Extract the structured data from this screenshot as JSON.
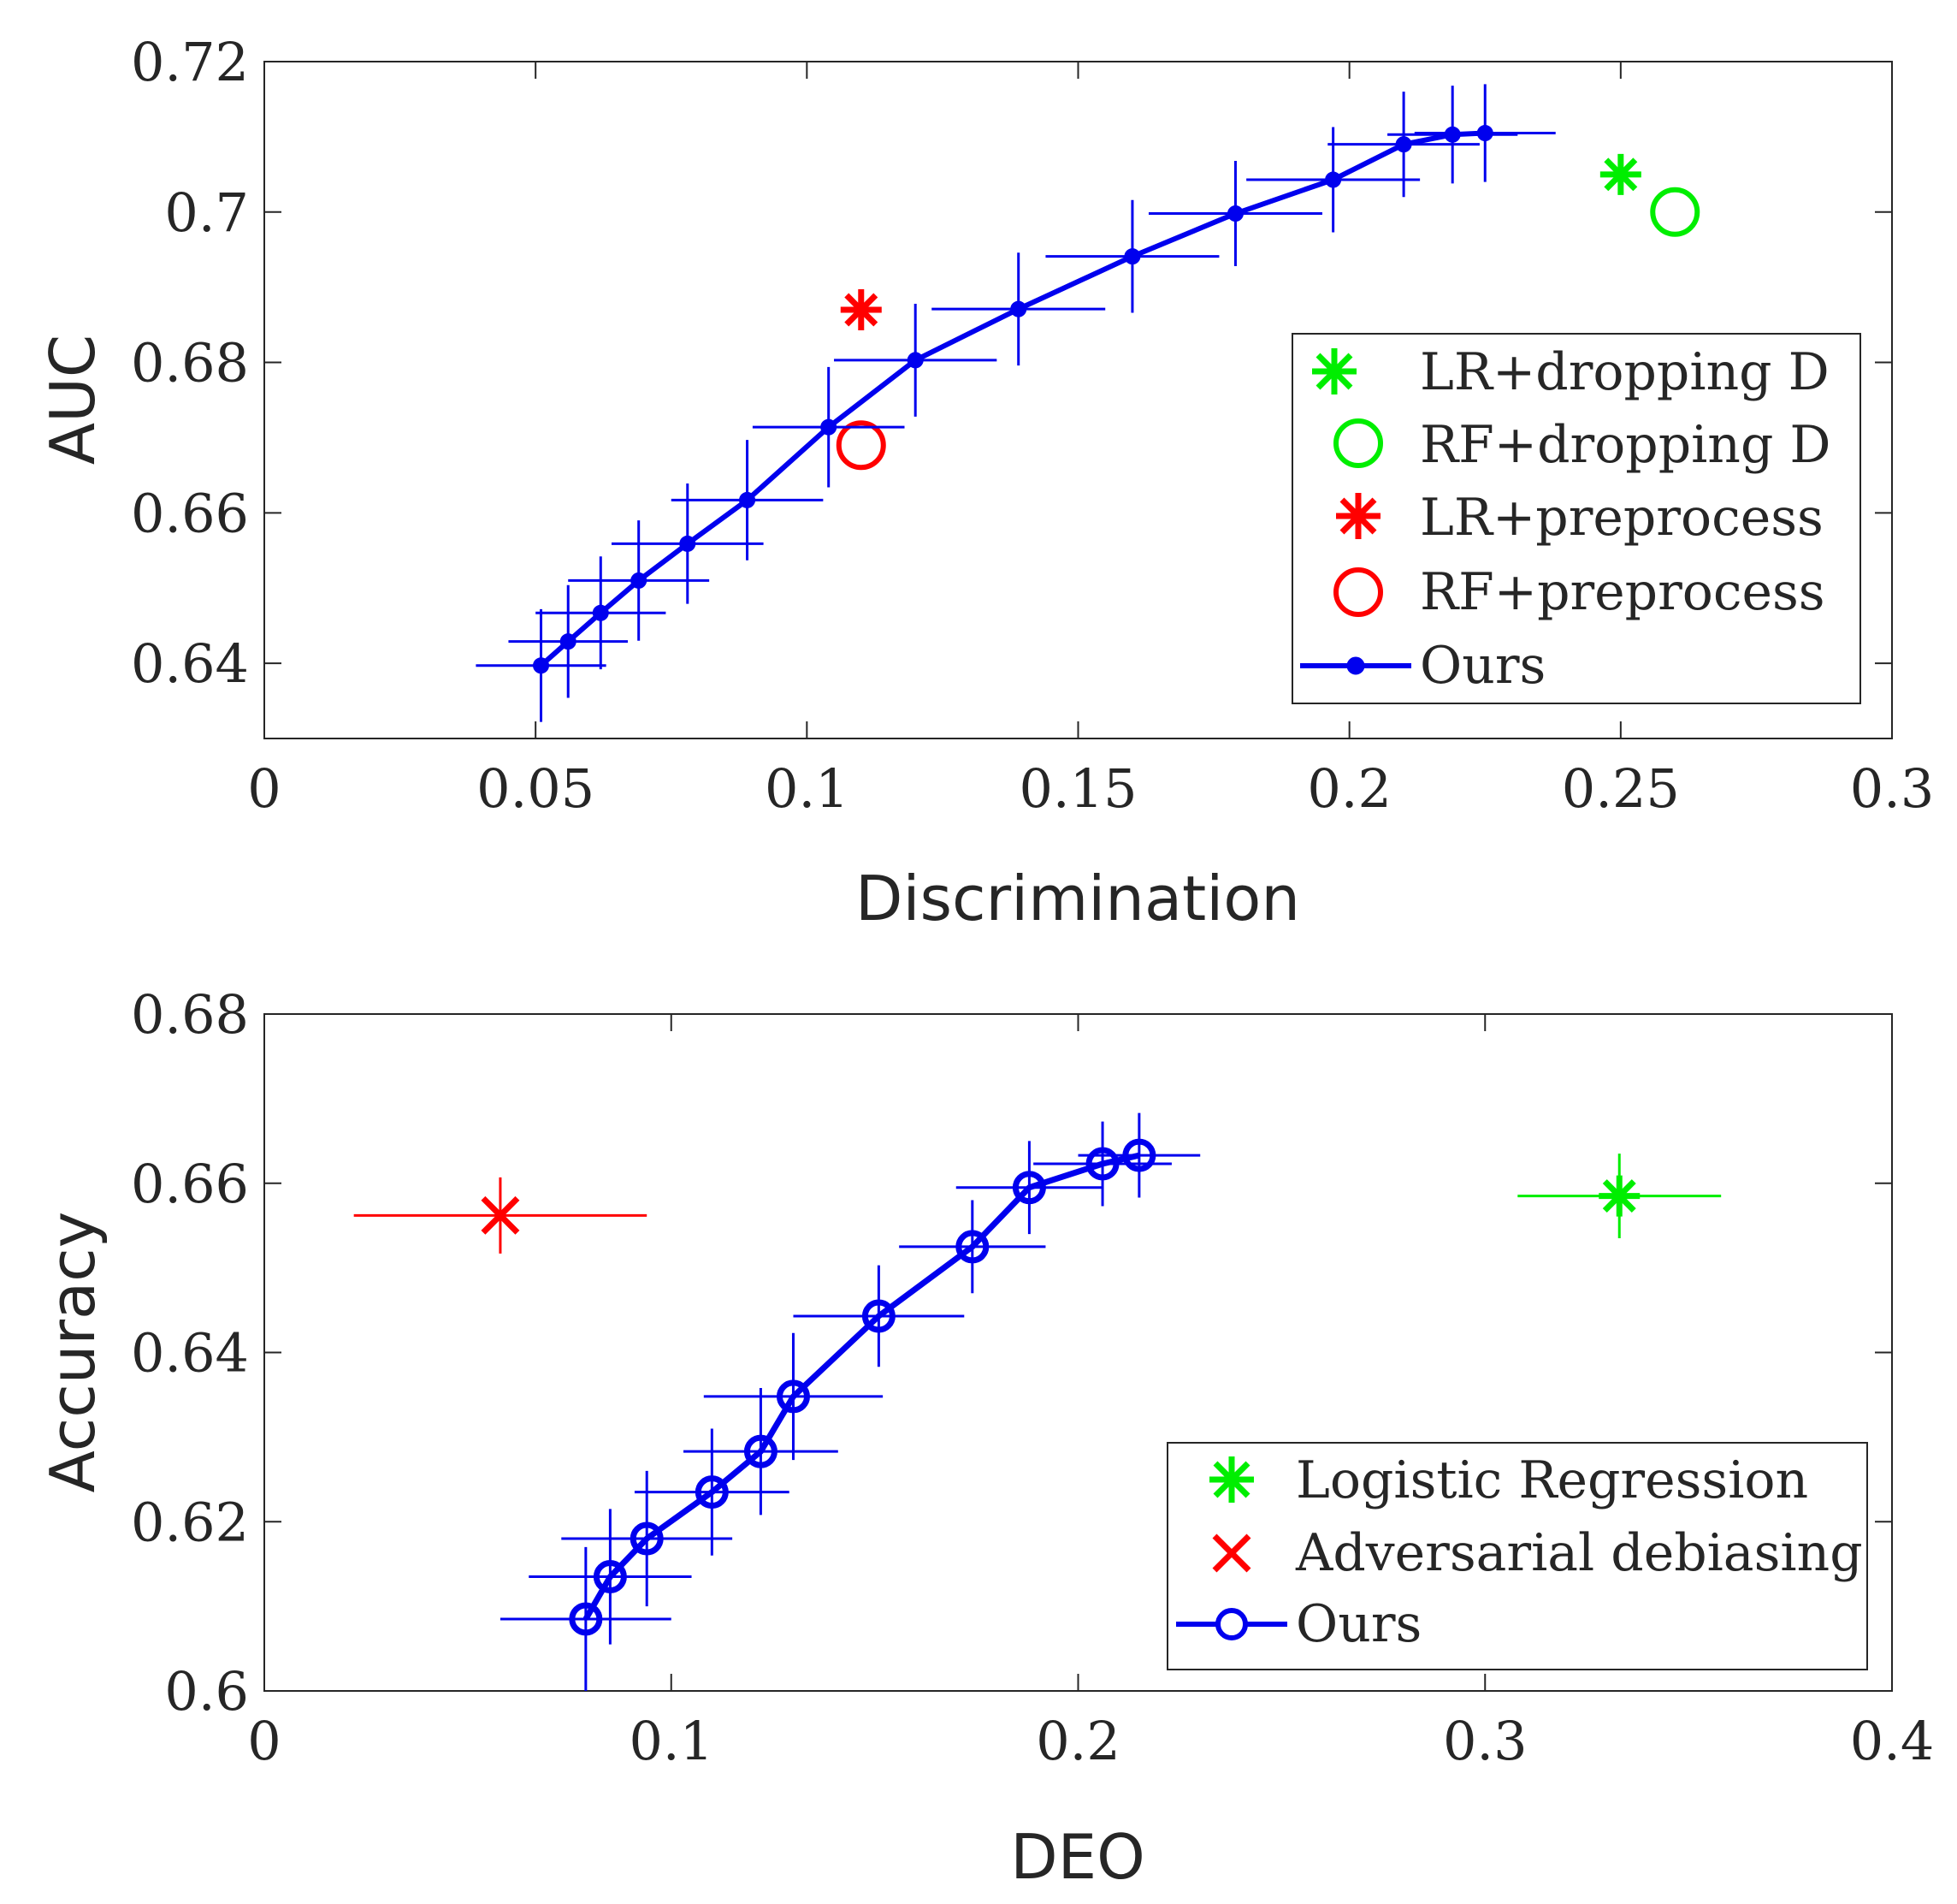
{
  "chart_data": [
    {
      "type": "scatter",
      "title": "",
      "xlabel": "Discrimination",
      "ylabel": "AUC",
      "xlim": [
        0,
        0.3
      ],
      "ylim": [
        0.63,
        0.72
      ],
      "xticks": [
        "0",
        "0.05",
        "0.1",
        "0.15",
        "0.2",
        "0.25",
        "0.3"
      ],
      "yticks": [
        "0.64",
        "0.66",
        "0.68",
        "0.7",
        "0.72"
      ],
      "legend_position": "right",
      "series": [
        {
          "name": "LR+dropping D",
          "marker": "asterisk",
          "color": "#00ee00",
          "x": [
            0.25
          ],
          "y": [
            0.705
          ]
        },
        {
          "name": "RF+dropping D",
          "marker": "circle",
          "color": "#00ee00",
          "x": [
            0.26
          ],
          "y": [
            0.7
          ]
        },
        {
          "name": "LR+preprocess",
          "marker": "asterisk",
          "color": "#ff0000",
          "x": [
            0.11
          ],
          "y": [
            0.687
          ]
        },
        {
          "name": "RF+preprocess",
          "marker": "circle",
          "color": "#ff0000",
          "x": [
            0.11
          ],
          "y": [
            0.669
          ]
        },
        {
          "name": "Ours",
          "marker": "dot-line",
          "color": "#0000ee",
          "x": [
            0.051,
            0.056,
            0.062,
            0.069,
            0.078,
            0.089,
            0.104,
            0.12,
            0.139,
            0.16,
            0.179,
            0.197,
            0.21,
            0.219,
            0.225
          ],
          "y": [
            0.6397,
            0.6429,
            0.6467,
            0.651,
            0.6559,
            0.6617,
            0.6714,
            0.6803,
            0.6871,
            0.6941,
            0.6998,
            0.7043,
            0.709,
            0.7103,
            0.7105
          ],
          "xerr": [
            0.012,
            0.011,
            0.012,
            0.013,
            0.014,
            0.014,
            0.014,
            0.015,
            0.016,
            0.016,
            0.016,
            0.016,
            0.014,
            0.012,
            0.013
          ],
          "yerr": [
            0.0075,
            0.0075,
            0.0075,
            0.008,
            0.008,
            0.008,
            0.008,
            0.0075,
            0.0075,
            0.0075,
            0.007,
            0.007,
            0.007,
            0.0065,
            0.0065
          ]
        }
      ]
    },
    {
      "type": "scatter",
      "title": "",
      "xlabel": "DEO",
      "ylabel": "Accuracy",
      "xlim": [
        0,
        0.4
      ],
      "ylim": [
        0.6,
        0.68
      ],
      "xticks": [
        "0",
        "0.1",
        "0.2",
        "0.3",
        "0.4"
      ],
      "yticks": [
        "0.6",
        "0.62",
        "0.64",
        "0.66",
        "0.68"
      ],
      "legend_position": "bottom-right",
      "series": [
        {
          "name": "Logistic Regression",
          "marker": "asterisk",
          "color": "#00ee00",
          "x": [
            0.333
          ],
          "y": [
            0.6585
          ],
          "xerr": [
            0.025
          ],
          "yerr": [
            0.005
          ]
        },
        {
          "name": "Adversarial debiasing",
          "marker": "cross",
          "color": "#ff0000",
          "x": [
            0.058
          ],
          "y": [
            0.6562
          ],
          "xerr": [
            0.036
          ],
          "yerr": [
            0.0045
          ]
        },
        {
          "name": "Ours",
          "marker": "circle-line",
          "color": "#0000ee",
          "x": [
            0.079,
            0.085,
            0.094,
            0.11,
            0.122,
            0.13,
            0.151,
            0.174,
            0.188,
            0.206,
            0.215
          ],
          "y": [
            0.6085,
            0.6135,
            0.618,
            0.6235,
            0.6283,
            0.6348,
            0.6443,
            0.6525,
            0.6595,
            0.6623,
            0.6633
          ],
          "xerr": [
            0.021,
            0.02,
            0.021,
            0.019,
            0.019,
            0.022,
            0.021,
            0.018,
            0.018,
            0.017,
            0.015
          ],
          "yerr": [
            0.0085,
            0.008,
            0.008,
            0.0075,
            0.0075,
            0.0075,
            0.006,
            0.0055,
            0.0055,
            0.005,
            0.005
          ]
        }
      ]
    }
  ]
}
